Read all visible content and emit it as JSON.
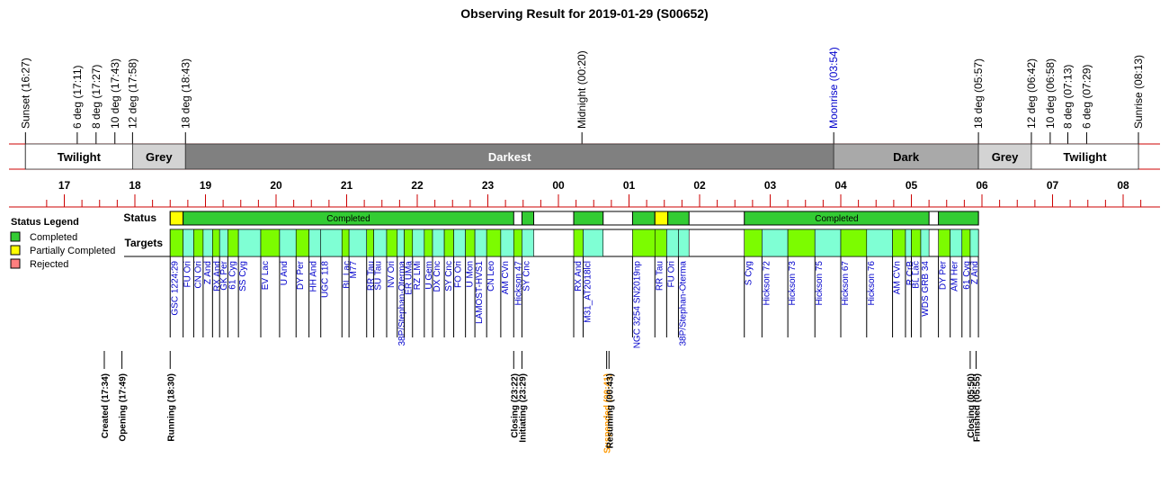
{
  "chart_data": {
    "type": "timeline",
    "title": "Observing Result for 2019-01-29 (S00652)",
    "time_axis": {
      "start": "16:00",
      "ticks": [
        "17",
        "18",
        "19",
        "20",
        "21",
        "22",
        "23",
        "00",
        "01",
        "02",
        "03",
        "04",
        "05",
        "06",
        "07",
        "08"
      ]
    },
    "twilight_events": [
      {
        "label": "Sunset (16:27)",
        "time": "16:27",
        "color": "#000000"
      },
      {
        "label": "6 deg (17:11)",
        "time": "17:11",
        "color": "#000000"
      },
      {
        "label": "8 deg (17:27)",
        "time": "17:27",
        "color": "#000000"
      },
      {
        "label": "10 deg (17:43)",
        "time": "17:43",
        "color": "#000000"
      },
      {
        "label": "12 deg (17:58)",
        "time": "17:58",
        "color": "#000000"
      },
      {
        "label": "18 deg (18:43)",
        "time": "18:43",
        "color": "#000000"
      },
      {
        "label": "Midnight (00:20)",
        "time": "00:20",
        "color": "#000000"
      },
      {
        "label": "Moonrise (03:54)",
        "time": "03:54",
        "color": "#0000cc"
      },
      {
        "label": "18 deg (05:57)",
        "time": "05:57",
        "color": "#000000"
      },
      {
        "label": "12 deg (06:42)",
        "time": "06:42",
        "color": "#000000"
      },
      {
        "label": "10 deg (06:58)",
        "time": "06:58",
        "color": "#000000"
      },
      {
        "label": "8 deg (07:13)",
        "time": "07:13",
        "color": "#000000"
      },
      {
        "label": "6 deg (07:29)",
        "time": "07:29",
        "color": "#000000"
      },
      {
        "label": "Sunrise (08:13)",
        "time": "08:13",
        "color": "#000000"
      }
    ],
    "sky_bands": [
      {
        "label": "Twilight",
        "start": "16:27",
        "end": "17:58",
        "color": "#ffffff"
      },
      {
        "label": "Grey",
        "start": "17:58",
        "end": "18:43",
        "color": "#d3d3d3"
      },
      {
        "label": "Darkest",
        "start": "18:43",
        "end": "03:54",
        "color": "#808080"
      },
      {
        "label": "Dark",
        "start": "03:54",
        "end": "05:57",
        "color": "#a9a9a9"
      },
      {
        "label": "Grey",
        "start": "05:57",
        "end": "06:42",
        "color": "#d3d3d3"
      },
      {
        "label": "Twilight",
        "start": "06:42",
        "end": "08:13",
        "color": "#ffffff"
      }
    ],
    "row_labels": {
      "status": "Status",
      "targets": "Targets"
    },
    "legend": {
      "title": "Status Legend",
      "items": [
        {
          "label": "Completed",
          "color": "#33cc33"
        },
        {
          "label": "Partially Completed",
          "color": "#ffff00"
        },
        {
          "label": "Rejected",
          "color": "#ff7f7f"
        }
      ]
    },
    "status_segments": [
      {
        "start": "18:30",
        "end": "18:41",
        "status": "Partially Completed",
        "color": "#ffff00",
        "label": ""
      },
      {
        "start": "18:41",
        "end": "23:22",
        "status": "Completed",
        "color": "#33cc33",
        "label": "Completed"
      },
      {
        "start": "23:29",
        "end": "23:39",
        "status": "Completed",
        "color": "#33cc33",
        "label": ""
      },
      {
        "start": "00:13",
        "end": "00:38",
        "status": "Completed",
        "color": "#33cc33",
        "label": ""
      },
      {
        "start": "01:03",
        "end": "01:22",
        "status": "Completed",
        "color": "#33cc33",
        "label": ""
      },
      {
        "start": "01:22",
        "end": "01:33",
        "status": "Partially Completed",
        "color": "#ffff00",
        "label": ""
      },
      {
        "start": "01:33",
        "end": "01:51",
        "status": "Completed",
        "color": "#33cc33",
        "label": ""
      },
      {
        "start": "02:38",
        "end": "05:15",
        "status": "Completed",
        "color": "#33cc33",
        "label": "Completed"
      },
      {
        "start": "05:23",
        "end": "05:57",
        "status": "Completed",
        "color": "#33cc33",
        "label": ""
      }
    ],
    "targets": [
      {
        "name": "GSC 1224:29",
        "start": "18:30",
        "end": "18:41",
        "color": "#7cfc00"
      },
      {
        "name": "FU Ori",
        "start": "18:41",
        "end": "18:50",
        "color": "#7fffd4"
      },
      {
        "name": "CN Ori",
        "start": "18:50",
        "end": "18:58",
        "color": "#7cfc00"
      },
      {
        "name": "Z And",
        "start": "18:58",
        "end": "19:06",
        "color": "#7fffd4"
      },
      {
        "name": "RX And",
        "start": "19:06",
        "end": "19:12",
        "color": "#7cfc00"
      },
      {
        "name": "GK Per",
        "start": "19:12",
        "end": "19:19",
        "color": "#7fffd4"
      },
      {
        "name": "61 Cyg",
        "start": "19:19",
        "end": "19:28",
        "color": "#7cfc00"
      },
      {
        "name": "SS Cyg",
        "start": "19:28",
        "end": "19:47",
        "color": "#7fffd4"
      },
      {
        "name": "EV Lac",
        "start": "19:47",
        "end": "20:03",
        "color": "#7cfc00"
      },
      {
        "name": "U And",
        "start": "20:03",
        "end": "20:17",
        "color": "#7fffd4"
      },
      {
        "name": "DY Per",
        "start": "20:17",
        "end": "20:28",
        "color": "#7cfc00"
      },
      {
        "name": "HH And",
        "start": "20:28",
        "end": "20:38",
        "color": "#7fffd4"
      },
      {
        "name": "UGC 118",
        "start": "20:38",
        "end": "20:56",
        "color": "#7fffd4"
      },
      {
        "name": "BL Lac",
        "start": "20:56",
        "end": "21:02",
        "color": "#7cfc00"
      },
      {
        "name": "M77",
        "start": "21:02",
        "end": "21:17",
        "color": "#7fffd4"
      },
      {
        "name": "RR Tau",
        "start": "21:17",
        "end": "21:23",
        "color": "#7cfc00"
      },
      {
        "name": "SU Tau",
        "start": "21:23",
        "end": "21:34",
        "color": "#7fffd4"
      },
      {
        "name": "NV Ori",
        "start": "21:34",
        "end": "21:43",
        "color": "#7cfc00"
      },
      {
        "name": "38P/Stephan-Oterma",
        "start": "21:43",
        "end": "21:49",
        "color": "#7fffd4"
      },
      {
        "name": "ER UMa",
        "start": "21:49",
        "end": "21:56",
        "color": "#7cfc00"
      },
      {
        "name": "RZ LMi",
        "start": "21:56",
        "end": "22:06",
        "color": "#7fffd4"
      },
      {
        "name": "U Gem",
        "start": "22:06",
        "end": "22:13",
        "color": "#7cfc00"
      },
      {
        "name": "DX Cnc",
        "start": "22:13",
        "end": "22:23",
        "color": "#7fffd4"
      },
      {
        "name": "SY Cnc",
        "start": "22:23",
        "end": "22:31",
        "color": "#7cfc00"
      },
      {
        "name": "FO Ori",
        "start": "22:31",
        "end": "22:41",
        "color": "#7fffd4"
      },
      {
        "name": "U Mon",
        "start": "22:41",
        "end": "22:49",
        "color": "#7cfc00"
      },
      {
        "name": "LAMOST-HVS1",
        "start": "22:49",
        "end": "22:59",
        "color": "#7fffd4"
      },
      {
        "name": "CN Leo",
        "start": "22:59",
        "end": "23:11",
        "color": "#7cfc00"
      },
      {
        "name": "AM CVn",
        "start": "23:11",
        "end": "23:22",
        "color": "#7fffd4"
      },
      {
        "name": "Hickson 47",
        "start": "23:22",
        "end": "23:32",
        "color": "#7cfc00"
      },
      {
        "name": "SY Cnc",
        "start": "23:29",
        "end": "23:39",
        "color": "#7fffd4"
      },
      {
        "name": "RX And",
        "start": "00:13",
        "end": "00:21",
        "color": "#7cfc00"
      },
      {
        "name": "M31_AT2018lcl",
        "start": "00:21",
        "end": "00:38",
        "color": "#7fffd4"
      },
      {
        "name": "NGC 3254 SN2019np",
        "start": "01:03",
        "end": "01:22",
        "color": "#7cfc00"
      },
      {
        "name": "RR Tau",
        "start": "01:22",
        "end": "01:32",
        "color": "#7cfc00"
      },
      {
        "name": "FU Ori",
        "start": "01:32",
        "end": "01:42",
        "color": "#7fffd4"
      },
      {
        "name": "38P/Stephan-Oterma",
        "start": "01:42",
        "end": "01:51",
        "color": "#7fffd4"
      },
      {
        "name": "S Cyg",
        "start": "02:38",
        "end": "02:53",
        "color": "#7cfc00"
      },
      {
        "name": "Hickson 72",
        "start": "02:53",
        "end": "03:15",
        "color": "#7fffd4"
      },
      {
        "name": "Hickson 73",
        "start": "03:15",
        "end": "03:38",
        "color": "#7cfc00"
      },
      {
        "name": "Hickson 75",
        "start": "03:38",
        "end": "04:00",
        "color": "#7fffd4"
      },
      {
        "name": "Hickson 67",
        "start": "04:00",
        "end": "04:22",
        "color": "#7cfc00"
      },
      {
        "name": "Hickson 76",
        "start": "04:22",
        "end": "04:44",
        "color": "#7fffd4"
      },
      {
        "name": "AM CVn",
        "start": "04:44",
        "end": "04:55",
        "color": "#7cfc00"
      },
      {
        "name": "R CrB",
        "start": "04:55",
        "end": "05:00",
        "color": "#7fffd4"
      },
      {
        "name": "BL Lac",
        "start": "05:00",
        "end": "05:08",
        "color": "#7cfc00"
      },
      {
        "name": "WDS GRB 34",
        "start": "05:08",
        "end": "05:15",
        "color": "#7fffd4"
      },
      {
        "name": "DY Per",
        "start": "05:23",
        "end": "05:33",
        "color": "#7cfc00"
      },
      {
        "name": "AM Her",
        "start": "05:33",
        "end": "05:43",
        "color": "#7fffd4"
      },
      {
        "name": "61 Cyg",
        "start": "05:43",
        "end": "05:50",
        "color": "#7cfc00"
      },
      {
        "name": "Z And",
        "start": "05:50",
        "end": "05:57",
        "color": "#7fffd4"
      }
    ],
    "events": [
      {
        "label": "Created (17:34)",
        "time": "17:34",
        "color": "#000000"
      },
      {
        "label": "Opening (17:49)",
        "time": "17:49",
        "color": "#000000"
      },
      {
        "label": "Running (18:30)",
        "time": "18:30",
        "color": "#000000"
      },
      {
        "label": "Closing (23:22)",
        "time": "23:22",
        "color": "#000000"
      },
      {
        "label": "Initiating (23:29)",
        "time": "23:29",
        "color": "#000000"
      },
      {
        "label": "Suspended (00:41)",
        "time": "00:41",
        "color": "#ff9900"
      },
      {
        "label": "Resuming (00:43)",
        "time": "00:43",
        "color": "#000000"
      },
      {
        "label": "Closing (05:50)",
        "time": "05:50",
        "color": "#000000"
      },
      {
        "label": "Finished (05:55)",
        "time": "05:55",
        "color": "#000000"
      }
    ]
  }
}
